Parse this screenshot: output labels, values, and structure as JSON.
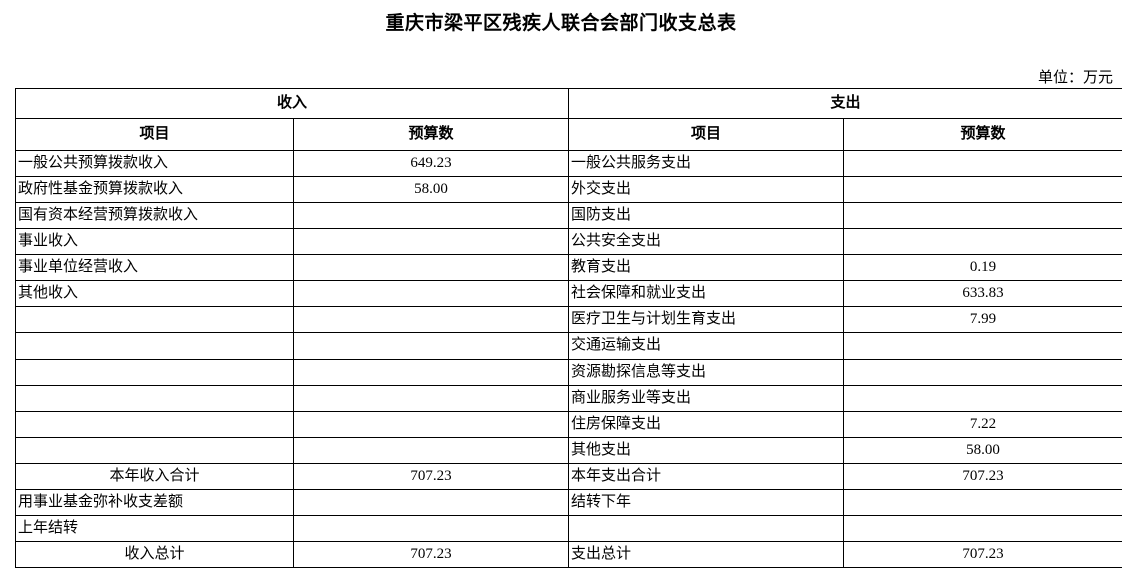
{
  "page": {
    "title": "重庆市梁平区残疾人联合会部门收支总表",
    "unit_note": "单位：万元"
  },
  "table": {
    "sections": {
      "income": "收入",
      "expense": "支出"
    },
    "columns": {
      "item": "项目",
      "budget": "预算数"
    },
    "rows": [
      {
        "income_item": "一般公共预算拨款收入",
        "income_value": "649.23",
        "expense_item": "一般公共服务支出",
        "expense_value": "",
        "total_row": false
      },
      {
        "income_item": "政府性基金预算拨款收入",
        "income_value": "58.00",
        "expense_item": "外交支出",
        "expense_value": "",
        "total_row": false
      },
      {
        "income_item": "国有资本经营预算拨款收入",
        "income_value": "",
        "expense_item": "国防支出",
        "expense_value": "",
        "total_row": false
      },
      {
        "income_item": "事业收入",
        "income_value": "",
        "expense_item": "公共安全支出",
        "expense_value": "",
        "total_row": false
      },
      {
        "income_item": "事业单位经营收入",
        "income_value": "",
        "expense_item": "教育支出",
        "expense_value": "0.19",
        "total_row": false
      },
      {
        "income_item": "其他收入",
        "income_value": "",
        "expense_item": "社会保障和就业支出",
        "expense_value": "633.83",
        "total_row": false
      },
      {
        "income_item": "",
        "income_value": "",
        "expense_item": "医疗卫生与计划生育支出",
        "expense_value": "7.99",
        "total_row": false
      },
      {
        "income_item": "",
        "income_value": "",
        "expense_item": "交通运输支出",
        "expense_value": "",
        "total_row": false
      },
      {
        "income_item": "",
        "income_value": "",
        "expense_item": "资源勘探信息等支出",
        "expense_value": "",
        "total_row": false
      },
      {
        "income_item": "",
        "income_value": "",
        "expense_item": "商业服务业等支出",
        "expense_value": "",
        "total_row": false
      },
      {
        "income_item": "",
        "income_value": "",
        "expense_item": "住房保障支出",
        "expense_value": "7.22",
        "total_row": false
      },
      {
        "income_item": "",
        "income_value": "",
        "expense_item": "其他支出",
        "expense_value": "58.00",
        "total_row": false
      },
      {
        "income_item": "本年收入合计",
        "income_value": "707.23",
        "expense_item": "本年支出合计",
        "expense_value": "707.23",
        "total_row": true
      },
      {
        "income_item": "用事业基金弥补收支差额",
        "income_value": "",
        "expense_item": "结转下年",
        "expense_value": "",
        "total_row": false
      },
      {
        "income_item": "上年结转",
        "income_value": "",
        "expense_item": "",
        "expense_value": "",
        "total_row": false
      },
      {
        "income_item": "收入总计",
        "income_value": "707.23",
        "expense_item": "支出总计",
        "expense_value": "707.23",
        "total_row": true
      }
    ]
  },
  "colors": {
    "border": "#000000",
    "text": "#000000",
    "background": "#ffffff"
  }
}
